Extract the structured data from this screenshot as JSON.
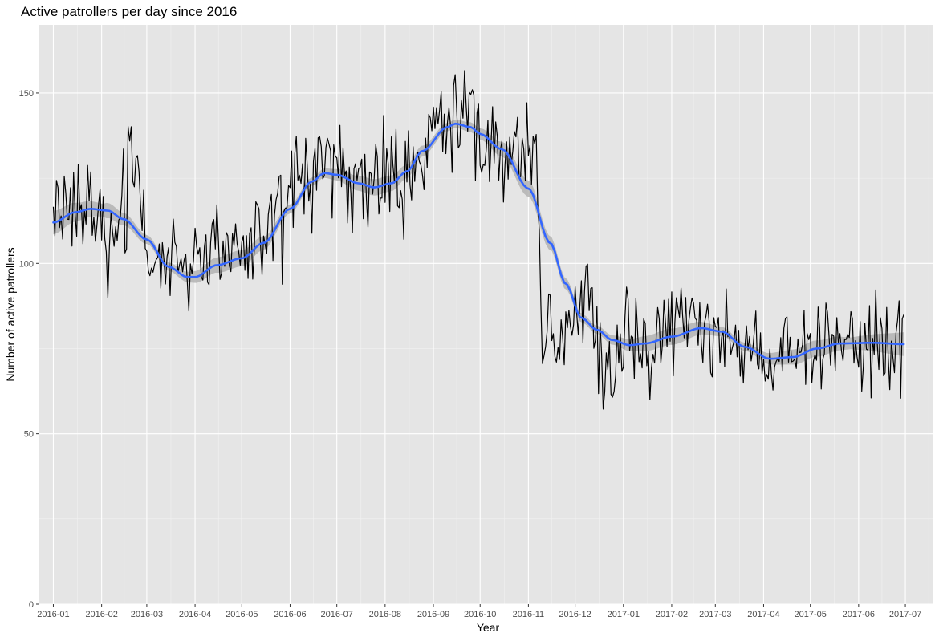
{
  "chart_data": {
    "type": "line",
    "title": "Active patrollers per day since 2016",
    "xlabel": "Year",
    "ylabel": "Number of active patrollers",
    "xlim": [
      "2015-12-23",
      "2017-07-19"
    ],
    "ylim": [
      0,
      170
    ],
    "x_ticks": [
      "2016-01",
      "2016-02",
      "2016-03",
      "2016-04",
      "2016-05",
      "2016-06",
      "2016-07",
      "2016-08",
      "2016-09",
      "2016-10",
      "2016-11",
      "2016-12",
      "2017-01",
      "2017-02",
      "2017-03",
      "2017-04",
      "2017-05",
      "2017-06",
      "2017-07"
    ],
    "y_ticks": [
      0,
      50,
      100,
      150
    ],
    "grid": true,
    "panel_background": "#e5e5e5",
    "daily_start_date": "2016-01-01",
    "daily_end_date": "2017-06-30",
    "series": [
      {
        "kind": "daily",
        "color": "#000000",
        "anchors": [
          [
            "2016-01-01",
            112
          ],
          [
            "2016-01-08",
            116
          ],
          [
            "2016-01-15",
            122
          ],
          [
            "2016-01-22",
            116
          ],
          [
            "2016-02-01",
            110
          ],
          [
            "2016-02-08",
            107
          ],
          [
            "2016-02-15",
            113
          ],
          [
            "2016-02-20",
            140
          ],
          [
            "2016-02-25",
            128
          ],
          [
            "2016-03-01",
            100
          ],
          [
            "2016-03-08",
            98
          ],
          [
            "2016-03-15",
            99
          ],
          [
            "2016-03-22",
            96
          ],
          [
            "2016-04-01",
            98
          ],
          [
            "2016-04-08",
            101
          ],
          [
            "2016-04-15",
            100
          ],
          [
            "2016-04-22",
            99
          ],
          [
            "2016-05-01",
            102
          ],
          [
            "2016-05-08",
            106
          ],
          [
            "2016-05-15",
            105
          ],
          [
            "2016-05-22",
            110
          ],
          [
            "2016-06-01",
            122
          ],
          [
            "2016-06-08",
            127
          ],
          [
            "2016-06-15",
            128
          ],
          [
            "2016-06-22",
            130
          ],
          [
            "2016-07-01",
            124
          ],
          [
            "2016-07-08",
            122
          ],
          [
            "2016-07-15",
            128
          ],
          [
            "2016-07-22",
            120
          ],
          [
            "2016-08-01",
            122
          ],
          [
            "2016-08-08",
            124
          ],
          [
            "2016-08-15",
            125
          ],
          [
            "2016-08-22",
            132
          ],
          [
            "2016-09-01",
            140
          ],
          [
            "2016-09-08",
            145
          ],
          [
            "2016-09-15",
            146
          ],
          [
            "2016-09-22",
            140
          ],
          [
            "2016-10-01",
            138
          ],
          [
            "2016-10-08",
            133
          ],
          [
            "2016-10-15",
            126
          ],
          [
            "2016-10-22",
            130
          ],
          [
            "2016-11-01",
            130
          ],
          [
            "2016-11-05",
            140
          ],
          [
            "2016-11-10",
            80
          ],
          [
            "2016-11-20",
            78
          ],
          [
            "2016-12-01",
            84
          ],
          [
            "2016-12-08",
            90
          ],
          [
            "2016-12-15",
            78
          ],
          [
            "2016-12-24",
            66
          ],
          [
            "2017-01-01",
            76
          ],
          [
            "2017-01-08",
            75
          ],
          [
            "2017-01-15",
            77
          ],
          [
            "2017-01-22",
            76
          ],
          [
            "2017-02-01",
            79
          ],
          [
            "2017-02-08",
            82
          ],
          [
            "2017-02-15",
            85
          ],
          [
            "2017-02-22",
            80
          ],
          [
            "2017-03-01",
            82
          ],
          [
            "2017-03-08",
            80
          ],
          [
            "2017-03-15",
            76
          ],
          [
            "2017-03-22",
            74
          ],
          [
            "2017-04-01",
            72
          ],
          [
            "2017-04-08",
            70
          ],
          [
            "2017-04-15",
            71
          ],
          [
            "2017-04-22",
            73
          ],
          [
            "2017-05-01",
            76
          ],
          [
            "2017-05-08",
            78
          ],
          [
            "2017-05-15",
            77
          ],
          [
            "2017-05-22",
            79
          ],
          [
            "2017-06-01",
            76
          ],
          [
            "2017-06-08",
            76
          ],
          [
            "2017-06-15",
            75
          ],
          [
            "2017-06-22",
            77
          ],
          [
            "2017-06-30",
            80
          ]
        ],
        "jitter": 12
      },
      {
        "kind": "smooth",
        "color": "#3366ff",
        "ribbon_color": "#b3b3b3",
        "points": [
          [
            "2016-01-01",
            112
          ],
          [
            "2016-01-15",
            115
          ],
          [
            "2016-01-25",
            116
          ],
          [
            "2016-02-05",
            115.5
          ],
          [
            "2016-02-15",
            113
          ],
          [
            "2016-03-01",
            107
          ],
          [
            "2016-03-15",
            99
          ],
          [
            "2016-03-27",
            96
          ],
          [
            "2016-04-01",
            96
          ],
          [
            "2016-04-15",
            99.5
          ],
          [
            "2016-05-01",
            101.5
          ],
          [
            "2016-05-15",
            106
          ],
          [
            "2016-06-01",
            116
          ],
          [
            "2016-06-15",
            124
          ],
          [
            "2016-06-23",
            126.5
          ],
          [
            "2016-07-01",
            126
          ],
          [
            "2016-07-15",
            123.5
          ],
          [
            "2016-07-25",
            122.3
          ],
          [
            "2016-08-05",
            123.5
          ],
          [
            "2016-08-15",
            127
          ],
          [
            "2016-08-25",
            133
          ],
          [
            "2016-09-10",
            140
          ],
          [
            "2016-09-15",
            141
          ],
          [
            "2016-09-25",
            140
          ],
          [
            "2016-10-01",
            138
          ],
          [
            "2016-10-15",
            133.5
          ],
          [
            "2016-11-01",
            122
          ],
          [
            "2016-11-15",
            106
          ],
          [
            "2016-11-25",
            94
          ],
          [
            "2016-12-05",
            84
          ],
          [
            "2016-12-15",
            80.5
          ],
          [
            "2016-12-25",
            77.5
          ],
          [
            "2017-01-05",
            76
          ],
          [
            "2017-01-15",
            76.5
          ],
          [
            "2017-02-01",
            78.5
          ],
          [
            "2017-02-20",
            81
          ],
          [
            "2017-03-05",
            80
          ],
          [
            "2017-03-20",
            75.5
          ],
          [
            "2017-04-05",
            72
          ],
          [
            "2017-04-20",
            72.5
          ],
          [
            "2017-05-05",
            75
          ],
          [
            "2017-05-20",
            76.5
          ],
          [
            "2017-06-10",
            76.7
          ],
          [
            "2017-06-30",
            76.3
          ]
        ],
        "ribbon_halfwidth": [
          3.5,
          1.8,
          1.8,
          3.5
        ]
      }
    ]
  }
}
